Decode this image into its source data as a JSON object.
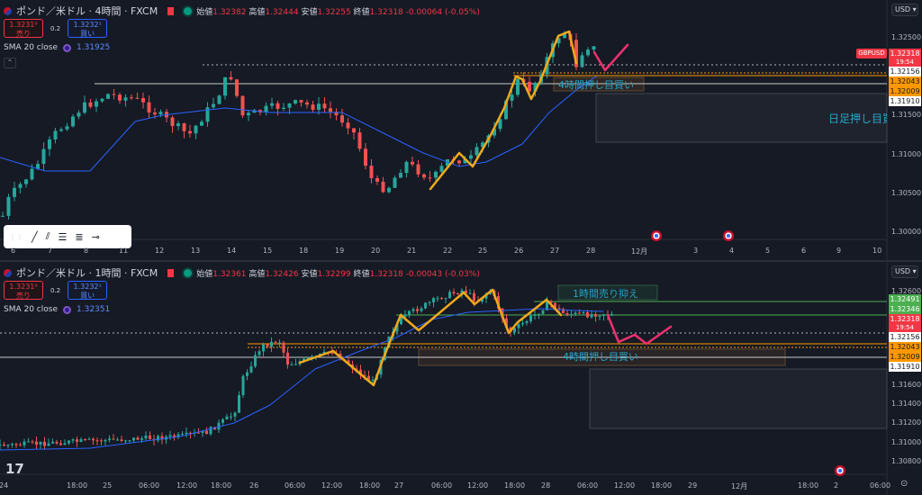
{
  "top": {
    "symbol": "ポンド／米ドル · 4時間 · FXCM",
    "ohlc": {
      "open_label": "始値",
      "open": "1.32382",
      "high_label": "高値",
      "high": "1.32444",
      "low_label": "安値",
      "low": "1.32255",
      "close_label": "終値",
      "close": "1.32318",
      "change": "-0.00064 (-0.05%)"
    },
    "sell": {
      "price": "1.3231⁹",
      "label": "売り"
    },
    "spread": "0.2",
    "buy": {
      "price": "1.3232¹",
      "label": "買い"
    },
    "sma": {
      "label": "SMA 20 close",
      "value": "1.31925"
    },
    "currency": "USD",
    "price_ticks": [
      "1.32500",
      "1.31500",
      "1.31000",
      "1.30500",
      "1.30000"
    ],
    "price_labels": [
      {
        "text": "1.32318",
        "sub": "19:54",
        "kind": "current"
      },
      {
        "text": "1.32156",
        "kind": "white"
      },
      {
        "text": "1.32043",
        "kind": "orange"
      },
      {
        "text": "1.32009",
        "kind": "orange"
      },
      {
        "text": "1.31910",
        "kind": "white"
      }
    ],
    "symbol_tag": "GBPUSD",
    "time_ticks": [
      "6",
      "7",
      "8",
      "11",
      "12",
      "13",
      "14",
      "15",
      "18",
      "19",
      "20",
      "21",
      "22",
      "25",
      "26",
      "27",
      "28",
      "12月",
      "3",
      "4",
      "5",
      "6",
      "9",
      "10"
    ],
    "annotations": {
      "h4_buy": "4時間押し目買い",
      "daily_buy": "日足押し目買い"
    }
  },
  "bottom": {
    "symbol": "ポンド／米ドル · 1時間 · FXCM",
    "ohlc": {
      "open_label": "始値",
      "open": "1.32361",
      "high_label": "高値",
      "high": "1.32426",
      "low_label": "安値",
      "low": "1.32299",
      "close_label": "終値",
      "close": "1.32318",
      "change": "-0.00043 (-0.03%)"
    },
    "sell": {
      "price": "1.3231⁹",
      "label": "売り"
    },
    "spread": "0.2",
    "buy": {
      "price": "1.3232¹",
      "label": "買い"
    },
    "sma": {
      "label": "SMA 20 close",
      "value": "1.32351"
    },
    "currency": "USD",
    "price_ticks": [
      "1.32600",
      "1.31600",
      "1.31400",
      "1.31200",
      "1.31000",
      "1.30800"
    ],
    "price_labels": [
      {
        "text": "1.32491",
        "kind": "green"
      },
      {
        "text": "1.32346",
        "kind": "green"
      },
      {
        "text": "1.32318",
        "sub": "19:54",
        "kind": "current"
      },
      {
        "text": "1.32156",
        "kind": "white"
      },
      {
        "text": "1.32043",
        "kind": "orange"
      },
      {
        "text": "1.32009",
        "kind": "orange"
      },
      {
        "text": "1.31910",
        "kind": "white"
      }
    ],
    "time_ticks": [
      "24",
      "18:00",
      "25",
      "06:00",
      "12:00",
      "18:00",
      "26",
      "06:00",
      "12:00",
      "18:00",
      "27",
      "06:00",
      "12:00",
      "18:00",
      "28",
      "06:00",
      "12:00",
      "18:00",
      "29",
      "12月",
      "18:00",
      "2",
      "06:00"
    ],
    "annotations": {
      "h1_sell": "1時間売り抑え",
      "h4_buy": "4時間押し目買い"
    }
  },
  "drawing_toolbar": {
    "tools": [
      "trend-line-icon",
      "parallel-channel-icon",
      "horizontal-lines-icon",
      "fib-icon",
      "ray-icon"
    ]
  },
  "colors": {
    "bg": "#161a25",
    "up": "#26a69a",
    "down": "#ef5350",
    "sma": "#2962ff",
    "zigzag": "#f0a91c",
    "forecast": "#f0306f",
    "annotation": "#26a6c9"
  }
}
